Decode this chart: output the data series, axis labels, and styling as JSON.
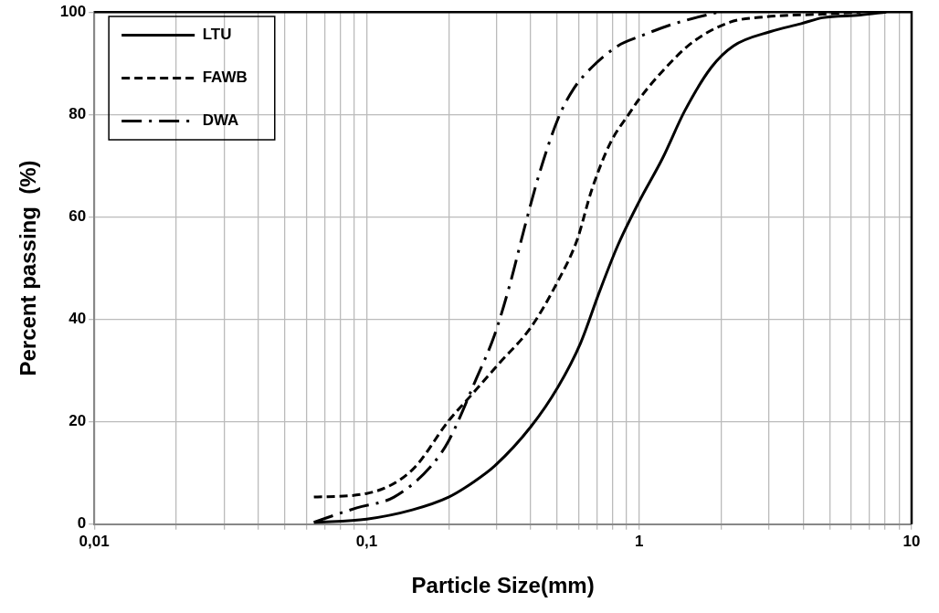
{
  "chart_data": {
    "type": "line",
    "xlabel": "Particle Size(mm)",
    "ylabel": "Percent passing  (%)",
    "log": "x",
    "grid": true,
    "legend": "top left",
    "marker": "none",
    "xlim": [
      0.01,
      10
    ],
    "ylim": [
      0,
      100
    ],
    "xticks": [
      {
        "value": 0.01,
        "label": "0,01"
      },
      {
        "value": 0.02,
        "label": null
      },
      {
        "value": 0.03,
        "label": null
      },
      {
        "value": 0.04,
        "label": null
      },
      {
        "value": 0.05,
        "label": null
      },
      {
        "value": 0.06,
        "label": null
      },
      {
        "value": 0.07,
        "label": null
      },
      {
        "value": 0.08,
        "label": null
      },
      {
        "value": 0.09,
        "label": null
      },
      {
        "value": 0.1,
        "label": "0,1"
      },
      {
        "value": 0.2,
        "label": null
      },
      {
        "value": 0.3,
        "label": null
      },
      {
        "value": 0.4,
        "label": null
      },
      {
        "value": 0.5,
        "label": null
      },
      {
        "value": 0.6,
        "label": null
      },
      {
        "value": 0.7,
        "label": null
      },
      {
        "value": 0.8,
        "label": null
      },
      {
        "value": 0.9,
        "label": null
      },
      1,
      {
        "value": 2,
        "label": null
      },
      {
        "value": 3,
        "label": null
      },
      {
        "value": 4,
        "label": null
      },
      {
        "value": 5,
        "label": null
      },
      {
        "value": 6,
        "label": null
      },
      {
        "value": 7,
        "label": null
      },
      {
        "value": 8,
        "label": null
      },
      {
        "value": 9,
        "label": null
      },
      10
    ],
    "yticks": [
      0,
      20,
      40,
      60,
      80,
      100
    ],
    "series": [
      {
        "name": "LTU",
        "color": "#000000",
        "line_style": "solid",
        "x": [
          0.064,
          0.1,
          0.147,
          0.2,
          0.243,
          0.294,
          0.4,
          0.505,
          0.61,
          0.714,
          0.836,
          1,
          1.22,
          1.47,
          1.84,
          2.22,
          3.04,
          3.91,
          4.72,
          6.47,
          8.07
        ],
        "values": [
          0.3,
          1,
          2.8,
          5.3,
          8,
          11.3,
          19,
          26.9,
          35.4,
          45.3,
          54.5,
          63,
          71.5,
          80.7,
          89.2,
          93.4,
          96.2,
          97.7,
          98.9,
          99.4,
          100
        ]
      },
      {
        "name": "FAWB",
        "color": "#000000",
        "line_style": "dashed",
        "x": [
          0.064,
          0.1,
          0.147,
          0.2,
          0.245,
          0.305,
          0.4,
          0.505,
          0.591,
          0.67,
          0.785,
          0.92,
          1,
          1.22,
          1.57,
          2.15,
          2.94,
          4.72,
          6.5
        ],
        "values": [
          5.3,
          6,
          10.6,
          20.2,
          25.5,
          31.3,
          38.4,
          47.6,
          55.4,
          65.3,
          74.5,
          80.2,
          83,
          88.5,
          94.1,
          98,
          99.1,
          99.6,
          100
        ]
      },
      {
        "name": "DWA",
        "color": "#000000",
        "line_style": "dashdot",
        "x": [
          0.064,
          0.092,
          0.126,
          0.172,
          0.2,
          0.252,
          0.294,
          0.335,
          0.38,
          0.431,
          0.505,
          0.573,
          0.67,
          0.836,
          1,
          1.34,
          1.95
        ],
        "values": [
          0.4,
          3.2,
          5.3,
          11.3,
          16.3,
          28.3,
          36.8,
          46.7,
          58,
          68.6,
          79.3,
          84.9,
          89.2,
          93.4,
          95.2,
          97.7,
          100
        ]
      }
    ]
  }
}
